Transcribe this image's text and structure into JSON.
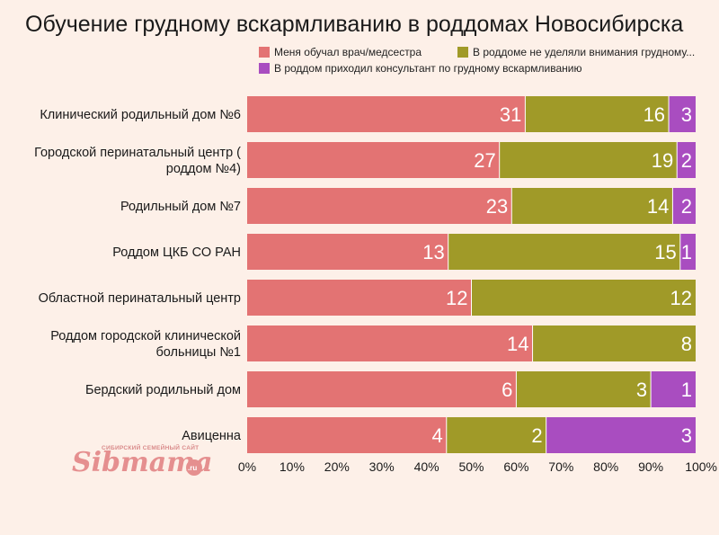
{
  "watermark": {
    "top_text": "СИБИРСКИЙ СЕМЕЙНЫЙ САЙТ",
    "brand": "Sibmama",
    "domain": ".ru"
  },
  "chart_data": {
    "type": "bar",
    "orientation": "horizontal",
    "stacked": "percent",
    "title": "Обучение грудному вскармливанию в роддомах Новосибирска",
    "xlabel": "",
    "ylabel": "",
    "xlim": [
      0,
      100
    ],
    "x_ticks": [
      "0%",
      "10%",
      "20%",
      "30%",
      "40%",
      "50%",
      "60%",
      "70%",
      "80%",
      "90%",
      "100%"
    ],
    "legend_position": "top",
    "grid": false,
    "categories": [
      "Клинический родильный дом №6",
      "Городской перинатальный центр ( роддом №4)",
      "Родильный дом №7",
      "Роддом ЦКБ СО РАН",
      "Областной перинатальный центр",
      "Роддом городской клинической больницы №1",
      "Бердский родильный дом",
      "Авиценна"
    ],
    "category_lines": [
      [
        "Клинический родильный дом №6"
      ],
      [
        "Городской перинатальный центр (",
        "роддом №4)"
      ],
      [
        "Родильный дом №7"
      ],
      [
        "Роддом ЦКБ СО РАН"
      ],
      [
        "Областной перинатальный центр"
      ],
      [
        "Роддом городской клинической",
        "больницы №1"
      ],
      [
        "Бердский родильный дом"
      ],
      [
        "Авиценна"
      ]
    ],
    "series": [
      {
        "name": "Меня обучал врач/медсестра",
        "color": "#e37373",
        "values": [
          31,
          27,
          23,
          13,
          12,
          14,
          6,
          4
        ]
      },
      {
        "name": "В роддоме не уделяли внимания грудному...",
        "color": "#a09a28",
        "values": [
          16,
          19,
          14,
          15,
          12,
          8,
          3,
          2
        ]
      },
      {
        "name": "В роддом приходил консультант по грудному вскармливанию",
        "color": "#a94dc0",
        "values": [
          3,
          2,
          2,
          1,
          0,
          0,
          1,
          3
        ]
      }
    ]
  }
}
